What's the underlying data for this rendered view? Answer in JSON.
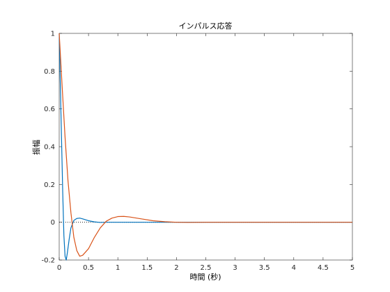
{
  "chart_data": {
    "type": "line",
    "title": "インパルス応答",
    "xlabel": "時間 (秒)",
    "ylabel": "振幅",
    "xlim": [
      0,
      5
    ],
    "ylim": [
      -0.2,
      1
    ],
    "xticks": [
      "0",
      "0.5",
      "1",
      "1.5",
      "2",
      "2.5",
      "3",
      "3.5",
      "4",
      "4.5",
      "5"
    ],
    "yticks": [
      "-0.2",
      "0",
      "0.2",
      "0.4",
      "0.6",
      "0.8",
      "1"
    ],
    "grid": false,
    "zero_reference_line": "dotted",
    "series": [
      {
        "color": "#0072BD",
        "points": [
          [
            0,
            1.0
          ],
          [
            0.02,
            0.72
          ],
          [
            0.04,
            0.44
          ],
          [
            0.06,
            0.16
          ],
          [
            0.08,
            -0.07
          ],
          [
            0.1,
            -0.18
          ],
          [
            0.12,
            -0.2
          ],
          [
            0.14,
            -0.16
          ],
          [
            0.17,
            -0.09
          ],
          [
            0.2,
            -0.03
          ],
          [
            0.25,
            0.01
          ],
          [
            0.3,
            0.02
          ],
          [
            0.35,
            0.022
          ],
          [
            0.4,
            0.018
          ],
          [
            0.5,
            0.008
          ],
          [
            0.6,
            0.002
          ],
          [
            0.7,
            -0.001
          ],
          [
            0.8,
            0.0
          ],
          [
            1.0,
            0.0
          ],
          [
            5.0,
            0.0
          ]
        ]
      },
      {
        "color": "#D95319",
        "points": [
          [
            0,
            1.0
          ],
          [
            0.05,
            0.72
          ],
          [
            0.1,
            0.45
          ],
          [
            0.15,
            0.22
          ],
          [
            0.2,
            0.05
          ],
          [
            0.25,
            -0.08
          ],
          [
            0.3,
            -0.15
          ],
          [
            0.35,
            -0.18
          ],
          [
            0.4,
            -0.175
          ],
          [
            0.5,
            -0.14
          ],
          [
            0.6,
            -0.08
          ],
          [
            0.7,
            -0.03
          ],
          [
            0.8,
            0.005
          ],
          [
            0.9,
            0.022
          ],
          [
            1.0,
            0.03
          ],
          [
            1.1,
            0.031
          ],
          [
            1.2,
            0.028
          ],
          [
            1.4,
            0.018
          ],
          [
            1.6,
            0.008
          ],
          [
            1.8,
            0.003
          ],
          [
            2.0,
            0.0
          ],
          [
            2.2,
            -0.001
          ],
          [
            2.5,
            0.0
          ],
          [
            5.0,
            0.0
          ]
        ]
      }
    ]
  }
}
